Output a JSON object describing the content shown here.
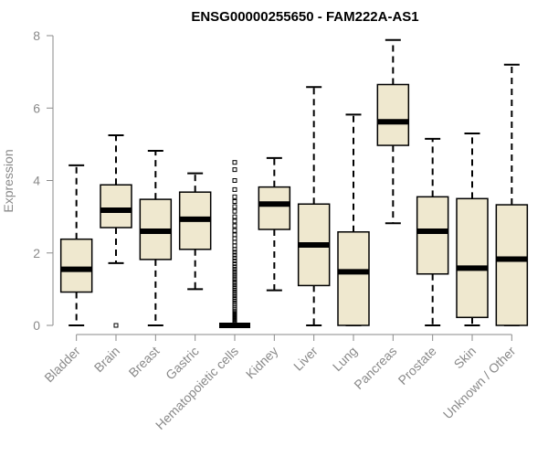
{
  "chart_data": {
    "type": "boxplot",
    "title": "ENSG00000255650 - FAM222A-AS1",
    "xlabel": "",
    "ylabel": "Expression",
    "ylim": [
      0,
      8
    ],
    "yticks": [
      "0",
      "2",
      "4",
      "6",
      "8"
    ],
    "grid": false,
    "legend": "none",
    "box_fill": "#efe8cf",
    "stroke_color": "#000000",
    "axis_color": "#8a8a8a",
    "categories": [
      "Bladder",
      "Brain",
      "Breast",
      "Gastric",
      "Hematopoietic cells",
      "Kidney",
      "Liver",
      "Lung",
      "Pancreas",
      "Prostate",
      "Skin",
      "Unknown / Other"
    ],
    "boxes": [
      {
        "name": "Bladder",
        "whisker_low": 0.0,
        "q1": 0.92,
        "median": 1.55,
        "q3": 2.38,
        "whisker_high": 4.42,
        "outliers": []
      },
      {
        "name": "Brain",
        "whisker_low": 1.72,
        "q1": 2.7,
        "median": 3.18,
        "q3": 3.88,
        "whisker_high": 5.25,
        "outliers": [
          0.0
        ]
      },
      {
        "name": "Breast",
        "whisker_low": 0.0,
        "q1": 1.82,
        "median": 2.6,
        "q3": 3.48,
        "whisker_high": 4.82,
        "outliers": []
      },
      {
        "name": "Gastric",
        "whisker_low": 1.0,
        "q1": 2.1,
        "median": 2.93,
        "q3": 3.68,
        "whisker_high": 4.2,
        "outliers": []
      },
      {
        "name": "Hematopoietic cells",
        "whisker_low": 0.0,
        "q1": 0.0,
        "median": 0.0,
        "q3": 0.0,
        "whisker_high": 0.0,
        "outliers": [
          0.03,
          0.06,
          0.09,
          0.12,
          0.16,
          0.2,
          0.24,
          0.28,
          0.32,
          0.36,
          0.4,
          0.45,
          0.5,
          0.55,
          0.6,
          0.66,
          0.72,
          0.78,
          0.84,
          0.9,
          0.96,
          1.02,
          1.08,
          1.14,
          1.2,
          1.27,
          1.34,
          1.41,
          1.48,
          1.55,
          1.62,
          1.7,
          1.78,
          1.86,
          1.94,
          2.02,
          2.1,
          2.2,
          2.3,
          2.4,
          2.5,
          2.62,
          2.75,
          2.88,
          3.0,
          3.15,
          3.28,
          3.42,
          3.55,
          3.75,
          4.0,
          4.3,
          4.5
        ]
      },
      {
        "name": "Kidney",
        "whisker_low": 0.97,
        "q1": 2.65,
        "median": 3.35,
        "q3": 3.82,
        "whisker_high": 4.62,
        "outliers": []
      },
      {
        "name": "Liver",
        "whisker_low": 0.0,
        "q1": 1.1,
        "median": 2.22,
        "q3": 3.35,
        "whisker_high": 6.58,
        "outliers": []
      },
      {
        "name": "Lung",
        "whisker_low": 0.0,
        "q1": 0.0,
        "median": 1.48,
        "q3": 2.58,
        "whisker_high": 5.82,
        "outliers": []
      },
      {
        "name": "Pancreas",
        "whisker_low": 2.82,
        "q1": 4.97,
        "median": 5.62,
        "q3": 6.65,
        "whisker_high": 7.88,
        "outliers": []
      },
      {
        "name": "Prostate",
        "whisker_low": 0.0,
        "q1": 1.42,
        "median": 2.6,
        "q3": 3.55,
        "whisker_high": 5.15,
        "outliers": []
      },
      {
        "name": "Skin",
        "whisker_low": 0.0,
        "q1": 0.22,
        "median": 1.58,
        "q3": 3.5,
        "whisker_high": 5.3,
        "outliers": []
      },
      {
        "name": "Unknown / Other",
        "whisker_low": 0.0,
        "q1": 0.0,
        "median": 1.83,
        "q3": 3.33,
        "whisker_high": 7.2,
        "outliers": []
      }
    ]
  }
}
